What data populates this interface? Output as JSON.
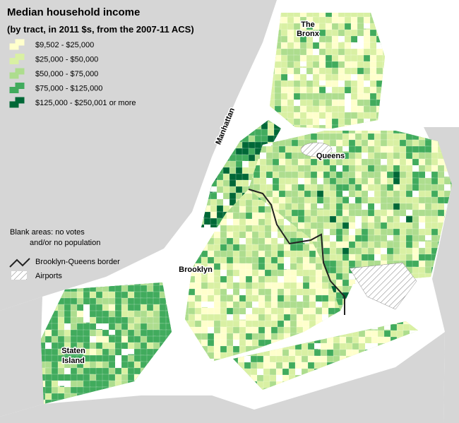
{
  "title": "Median household income",
  "subtitle": "(by tract, in 2011 $s, from the 2007-11 ACS)",
  "legend": [
    {
      "label": "$9,502 - $25,000",
      "color": "#ffffcc"
    },
    {
      "label": "$25,000 - $50,000",
      "color": "#d9f0a3"
    },
    {
      "label": "$50,000 - $75,000",
      "color": "#addd8e"
    },
    {
      "label": "$75,000 - $125,000",
      "color": "#41ab5d"
    },
    {
      "label": "$125,000 - $250,001 or more",
      "color": "#006837"
    }
  ],
  "notes": [
    "Blank areas: no votes",
    "and/or no population"
  ],
  "border_legend": "Brooklyn-Queens border",
  "airports_legend": "Airports",
  "places": {
    "bronx": [
      "The",
      "Bronx"
    ],
    "manhattan": "Manhattan",
    "queens": "Queens",
    "brooklyn": "Brooklyn",
    "staten_island": [
      "Staten",
      "Island"
    ]
  }
}
